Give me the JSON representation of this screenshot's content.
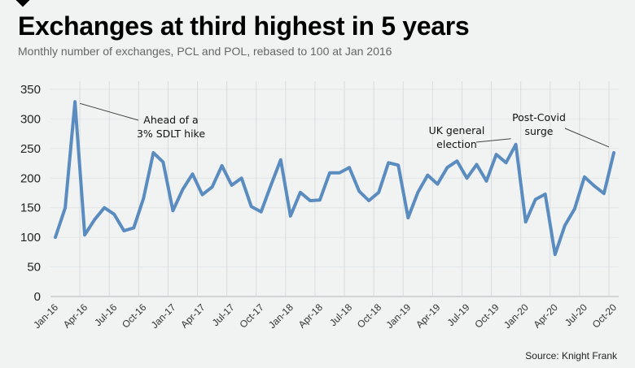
{
  "header": {
    "title": "Exchanges at third highest in 5 years",
    "subtitle": "Monthly number of exchanges, PCL and POL, rebased to 100 at Jan 2016"
  },
  "source": "Source: Knight Frank",
  "colors": {
    "line": "#5b8cc0",
    "grid": "#d9dcdc",
    "axis": "#c8cbcb",
    "annotation_line": "#444444"
  },
  "chart_data": {
    "type": "line",
    "title": "Exchanges at third highest in 5 years",
    "subtitle": "Monthly number of exchanges, PCL and POL, rebased to 100 at Jan 2016",
    "xlabel": "",
    "ylabel": "",
    "ylim": [
      0,
      350
    ],
    "yticks": [
      0,
      50,
      100,
      150,
      200,
      250,
      300,
      350
    ],
    "grid": true,
    "legend": "none",
    "x": [
      "Jan-16",
      "Feb-16",
      "Mar-16",
      "Apr-16",
      "May-16",
      "Jun-16",
      "Jul-16",
      "Aug-16",
      "Sep-16",
      "Oct-16",
      "Nov-16",
      "Dec-16",
      "Jan-17",
      "Feb-17",
      "Mar-17",
      "Apr-17",
      "May-17",
      "Jun-17",
      "Jul-17",
      "Aug-17",
      "Sep-17",
      "Oct-17",
      "Nov-17",
      "Dec-17",
      "Jan-18",
      "Feb-18",
      "Mar-18",
      "Apr-18",
      "May-18",
      "Jun-18",
      "Jul-18",
      "Aug-18",
      "Sep-18",
      "Oct-18",
      "Nov-18",
      "Dec-18",
      "Jan-19",
      "Feb-19",
      "Mar-19",
      "Apr-19",
      "May-19",
      "Jun-19",
      "Jul-19",
      "Aug-19",
      "Sep-19",
      "Oct-19",
      "Nov-19",
      "Dec-19",
      "Jan-20",
      "Feb-20",
      "Mar-20",
      "Apr-20",
      "May-20",
      "Jun-20",
      "Jul-20",
      "Aug-20",
      "Sep-20",
      "Oct-20"
    ],
    "xtick_labels": [
      "Jan-16",
      "Apr-16",
      "Jul-16",
      "Oct-16",
      "Jan-17",
      "Apr-17",
      "Jul-17",
      "Oct-17",
      "Jan-18",
      "Apr-18",
      "Jul-18",
      "Oct-18",
      "Jan-19",
      "Apr-19",
      "Jul-19",
      "Oct-19",
      "Jan-20",
      "Apr-20",
      "Jul-20",
      "Oct-20"
    ],
    "series": [
      {
        "name": "Exchanges index",
        "values": [
          100,
          150,
          329,
          104,
          130,
          150,
          139,
          111,
          116,
          166,
          243,
          227,
          145,
          181,
          207,
          172,
          185,
          221,
          188,
          200,
          152,
          143,
          188,
          231,
          136,
          176,
          162,
          163,
          209,
          209,
          218,
          178,
          162,
          176,
          226,
          222,
          133,
          176,
          205,
          190,
          218,
          229,
          200,
          223,
          195,
          240,
          226,
          257,
          126,
          164,
          173,
          71,
          120,
          148,
          202,
          187,
          174,
          243
        ]
      }
    ],
    "annotations": [
      {
        "lines": [
          "Ahead of a",
          "3% SDLT hike"
        ],
        "target": "Mar-16"
      },
      {
        "lines": [
          "UK general",
          "election"
        ],
        "target": "Dec-19"
      },
      {
        "lines": [
          "Post-Covid",
          "surge"
        ],
        "target": "Oct-20"
      }
    ]
  }
}
